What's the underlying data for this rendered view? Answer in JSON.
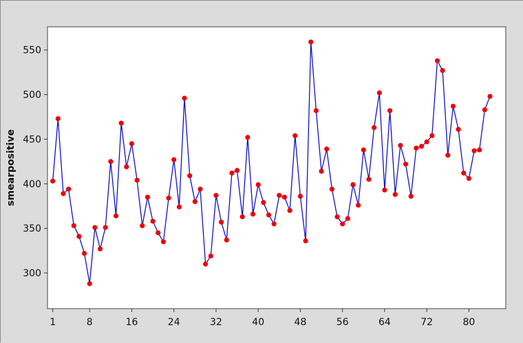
{
  "chart_data": {
    "type": "line",
    "title": "",
    "xlabel": "",
    "ylabel": "smearpositive",
    "xlim": [
      0,
      87
    ],
    "ylim": [
      260,
      576
    ],
    "x_ticks": [
      1,
      8,
      16,
      24,
      32,
      40,
      48,
      56,
      64,
      72,
      80
    ],
    "y_ticks": [
      300,
      350,
      400,
      450,
      500,
      550
    ],
    "grid": false,
    "legend": "none",
    "colors": {
      "line": "#1010cc",
      "marker": "#ee0000",
      "plot_bg": "#ffffff",
      "frame_bg": "#dcdcdc"
    },
    "series": [
      {
        "values": [
          403,
          473,
          389,
          394,
          353,
          341,
          322,
          288,
          351,
          327,
          351,
          425,
          364,
          468,
          419,
          445,
          404,
          353,
          385,
          358,
          345,
          335,
          384,
          427,
          374,
          496,
          409,
          380,
          394,
          310,
          319,
          387,
          357,
          337,
          412,
          415,
          363,
          452,
          366,
          399,
          379,
          365,
          355,
          387,
          385,
          370,
          454,
          386,
          336,
          559,
          482,
          414,
          439,
          394,
          363,
          355,
          361,
          399,
          376,
          438,
          405,
          463,
          502,
          393,
          482,
          388,
          443,
          422,
          386,
          440,
          442,
          447,
          454,
          538,
          527,
          432,
          487,
          461,
          412,
          406,
          437,
          438,
          483,
          498
        ]
      }
    ]
  }
}
